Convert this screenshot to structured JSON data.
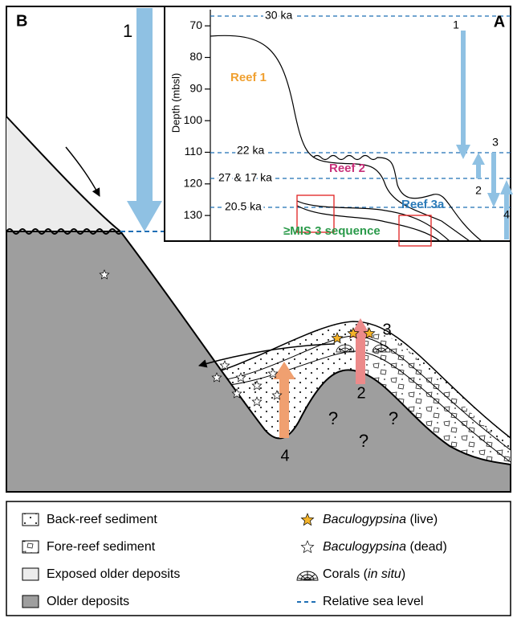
{
  "panel_b": {
    "label": "B",
    "arrow_labels": [
      "1",
      "2",
      "3",
      "4"
    ],
    "question_marks": [
      "?",
      "?",
      "?"
    ]
  },
  "panel_a": {
    "label": "A",
    "y_label": "Depth (mbsl)",
    "ylim": [
      66.4,
      138.1
    ],
    "yticks": [
      70,
      80,
      90,
      100,
      110,
      120,
      130
    ],
    "ages": [
      "30 ka",
      "22 ka",
      "27 & 17 ka",
      "20.5 ka"
    ],
    "arrow_labels": [
      "1",
      "2",
      "3",
      "4"
    ],
    "reefs": [
      "Reef 1",
      "Reef 2",
      "Reef 3a",
      "≥MIS 3 sequence"
    ]
  },
  "legend": {
    "items": [
      {
        "parts": [
          "Back-reef sediment"
        ]
      },
      {
        "parts": [
          "Fore-reef sediment"
        ]
      },
      {
        "parts": [
          "Exposed older deposits"
        ]
      },
      {
        "parts": [
          "Older deposits"
        ]
      },
      {
        "parts": [
          "Baculogypsina",
          " (live)"
        ]
      },
      {
        "parts": [
          "Baculogypsina",
          " (dead)"
        ]
      },
      {
        "parts": [
          "Corals (",
          "in situ",
          ")"
        ]
      },
      {
        "parts": [
          "Relative sea level"
        ]
      }
    ]
  }
}
